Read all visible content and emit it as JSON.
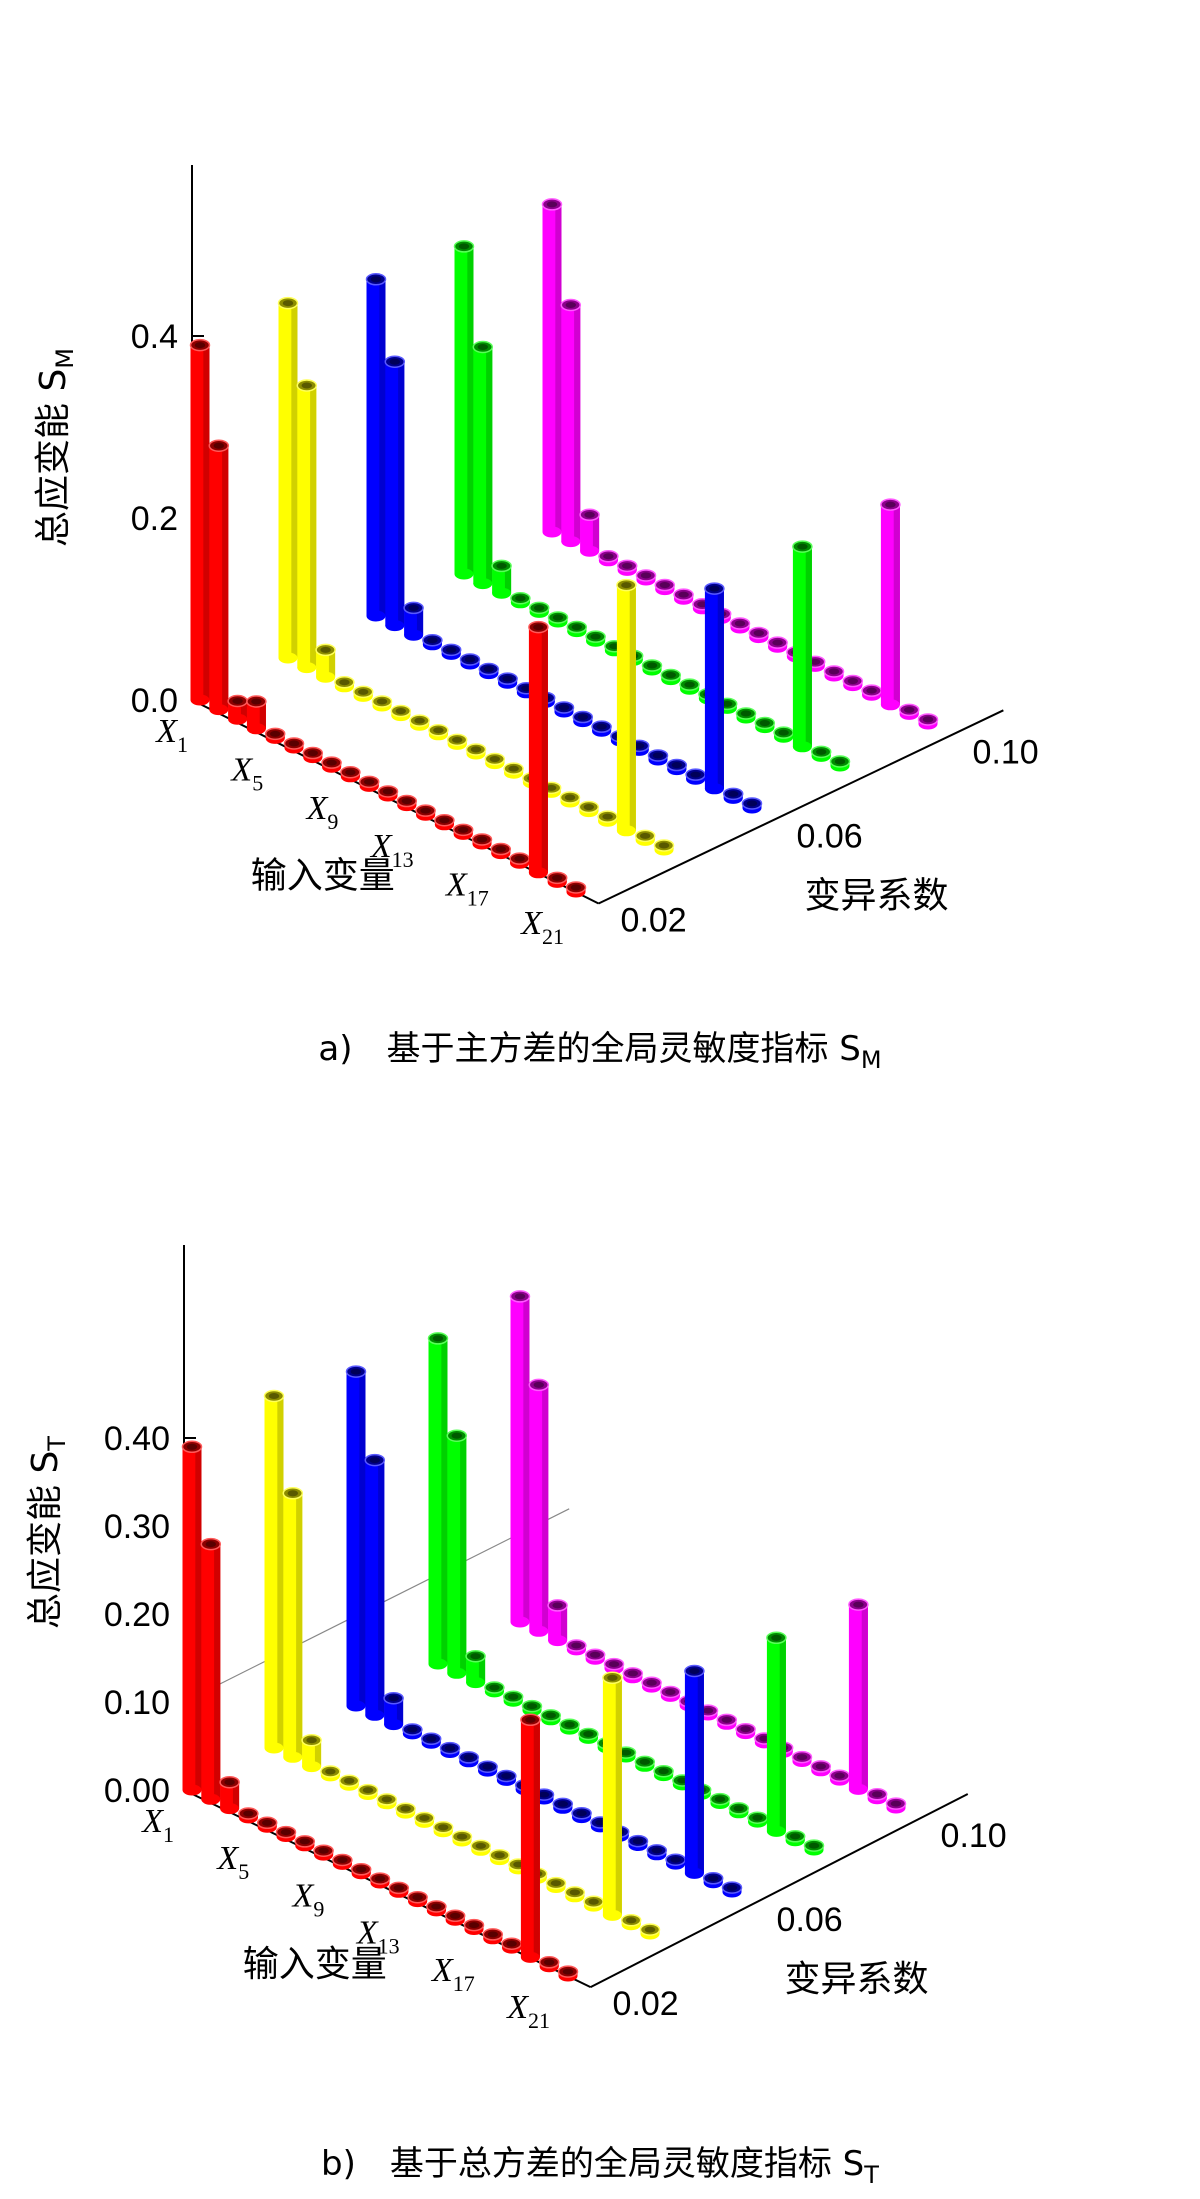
{
  "chart_data": [
    {
      "type": "bar3d",
      "caption": "a)　基于主方差的全局灵敏度指标 S",
      "caption_sub": "M",
      "zlabel": "总应变能 S",
      "zlabel_sub": "M",
      "xlabel": "输入变量",
      "ylabel": "变异系数",
      "z_ticks": [
        "0.0",
        "0.2",
        "0.4"
      ],
      "z_tick_values": [
        0.0,
        0.2,
        0.4
      ],
      "zlim": [
        0,
        0.4
      ],
      "x_tick_labels": [
        {
          "main": "X",
          "sub": "1"
        },
        {
          "main": "X",
          "sub": "5"
        },
        {
          "main": "X",
          "sub": "9"
        },
        {
          "main": "X",
          "sub": "13"
        },
        {
          "main": "X",
          "sub": "17"
        },
        {
          "main": "X",
          "sub": "21"
        }
      ],
      "y_ticks": [
        "0.02",
        "0.06",
        "0.10"
      ],
      "series": [
        {
          "cov": 0.02,
          "color": "#ff0000",
          "values": [
            0.39,
            0.29,
            0.02,
            0.03,
            0.005,
            0.005,
            0.005,
            0.005,
            0.005,
            0.005,
            0.005,
            0.005,
            0.005,
            0.005,
            0.005,
            0.005,
            0.005,
            0.005,
            0.27,
            0.005,
            0.005
          ]
        },
        {
          "cov": 0.04,
          "color": "#ffff00",
          "values": [
            0.39,
            0.31,
            0.03,
            0.005,
            0.005,
            0.005,
            0.005,
            0.005,
            0.005,
            0.005,
            0.005,
            0.005,
            0.005,
            0.005,
            0.005,
            0.005,
            0.005,
            0.005,
            0.27,
            0.005,
            0.005
          ]
        },
        {
          "cov": 0.06,
          "color": "#0000ff",
          "values": [
            0.37,
            0.29,
            0.03,
            0.005,
            0.005,
            0.005,
            0.005,
            0.005,
            0.005,
            0.005,
            0.005,
            0.005,
            0.005,
            0.005,
            0.005,
            0.005,
            0.005,
            0.005,
            0.22,
            0.005,
            0.005
          ]
        },
        {
          "cov": 0.08,
          "color": "#00ff00",
          "values": [
            0.36,
            0.26,
            0.03,
            0.005,
            0.005,
            0.005,
            0.005,
            0.005,
            0.005,
            0.005,
            0.005,
            0.005,
            0.005,
            0.005,
            0.005,
            0.005,
            0.005,
            0.005,
            0.22,
            0.005,
            0.005
          ]
        },
        {
          "cov": 0.1,
          "color": "#ff00ff",
          "values": [
            0.36,
            0.26,
            0.04,
            0.005,
            0.005,
            0.005,
            0.005,
            0.005,
            0.005,
            0.005,
            0.005,
            0.005,
            0.005,
            0.005,
            0.005,
            0.005,
            0.005,
            0.005,
            0.22,
            0.005,
            0.005
          ]
        }
      ]
    },
    {
      "type": "bar3d",
      "caption": "b)　基于总方差的全局灵敏度指标 S",
      "caption_sub": "T",
      "zlabel": "总应变能 S",
      "zlabel_sub": "T",
      "xlabel": "输入变量",
      "ylabel": "变异系数",
      "z_ticks": [
        "0.00",
        "0.10",
        "0.20",
        "0.30",
        "0.40"
      ],
      "z_tick_values": [
        0.0,
        0.1,
        0.2,
        0.3,
        0.4
      ],
      "zlim": [
        0,
        0.4
      ],
      "x_tick_labels": [
        {
          "main": "X",
          "sub": "1"
        },
        {
          "main": "X",
          "sub": "5"
        },
        {
          "main": "X",
          "sub": "9"
        },
        {
          "main": "X",
          "sub": "13"
        },
        {
          "main": "X",
          "sub": "17"
        },
        {
          "main": "X",
          "sub": "21"
        }
      ],
      "y_ticks": [
        "0.02",
        "0.06",
        "0.10"
      ],
      "series": [
        {
          "cov": 0.02,
          "color": "#ff0000",
          "values": [
            0.39,
            0.29,
            0.03,
            0.005,
            0.005,
            0.005,
            0.005,
            0.005,
            0.005,
            0.005,
            0.005,
            0.005,
            0.005,
            0.005,
            0.005,
            0.005,
            0.005,
            0.005,
            0.27,
            0.005,
            0.005
          ]
        },
        {
          "cov": 0.04,
          "color": "#ffff00",
          "values": [
            0.4,
            0.3,
            0.03,
            0.005,
            0.005,
            0.005,
            0.005,
            0.005,
            0.005,
            0.005,
            0.005,
            0.005,
            0.005,
            0.005,
            0.005,
            0.005,
            0.005,
            0.005,
            0.27,
            0.005,
            0.005
          ]
        },
        {
          "cov": 0.06,
          "color": "#0000ff",
          "values": [
            0.38,
            0.29,
            0.03,
            0.005,
            0.005,
            0.005,
            0.005,
            0.005,
            0.005,
            0.005,
            0.005,
            0.005,
            0.005,
            0.005,
            0.005,
            0.005,
            0.005,
            0.005,
            0.23,
            0.005,
            0.005
          ]
        },
        {
          "cov": 0.08,
          "color": "#00ff00",
          "values": [
            0.37,
            0.27,
            0.03,
            0.005,
            0.005,
            0.005,
            0.005,
            0.005,
            0.005,
            0.005,
            0.005,
            0.005,
            0.005,
            0.005,
            0.005,
            0.005,
            0.005,
            0.005,
            0.22,
            0.005,
            0.005
          ]
        },
        {
          "cov": 0.1,
          "color": "#ff00ff",
          "values": [
            0.37,
            0.28,
            0.04,
            0.005,
            0.005,
            0.005,
            0.005,
            0.005,
            0.005,
            0.005,
            0.005,
            0.005,
            0.005,
            0.005,
            0.005,
            0.005,
            0.005,
            0.005,
            0.21,
            0.005,
            0.005
          ]
        }
      ]
    }
  ]
}
